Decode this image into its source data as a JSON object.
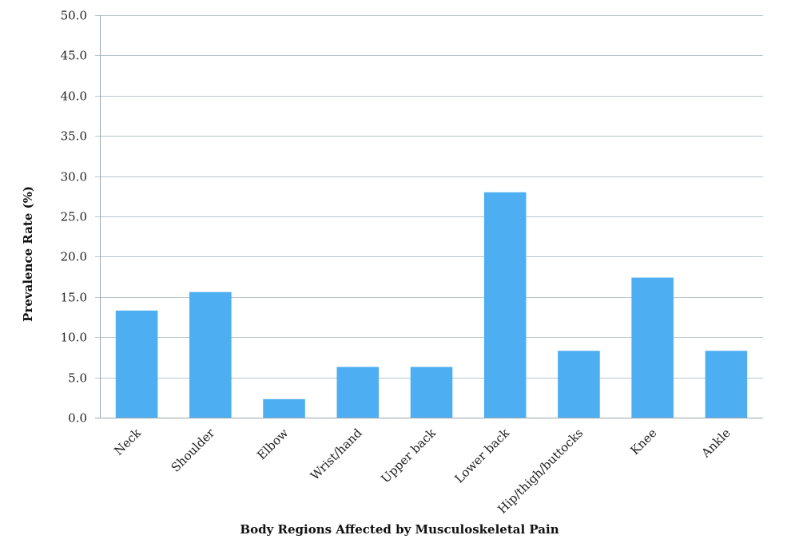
{
  "chart_data": {
    "type": "bar",
    "categories": [
      "Neck",
      "Shoulder",
      "Elbow",
      "Wrist/hand",
      "Upper back",
      "Lower back",
      "Hip/thigh/buttocks",
      "Knee",
      "Ankle"
    ],
    "values": [
      13.3,
      15.6,
      2.3,
      6.3,
      6.3,
      28.0,
      8.3,
      17.4,
      8.3
    ],
    "ylim": [
      0,
      50
    ],
    "yticks": [
      "0.0",
      "5.0",
      "10.0",
      "15.0",
      "20.0",
      "25.0",
      "30.0",
      "35.0",
      "40.0",
      "45.0",
      "50.0"
    ],
    "xlabel": "Body Regions Affected by Musculoskeletal Pain",
    "ylabel": "Prevalence Rate (%)",
    "grid": true,
    "bar_color": "#4daef2"
  }
}
